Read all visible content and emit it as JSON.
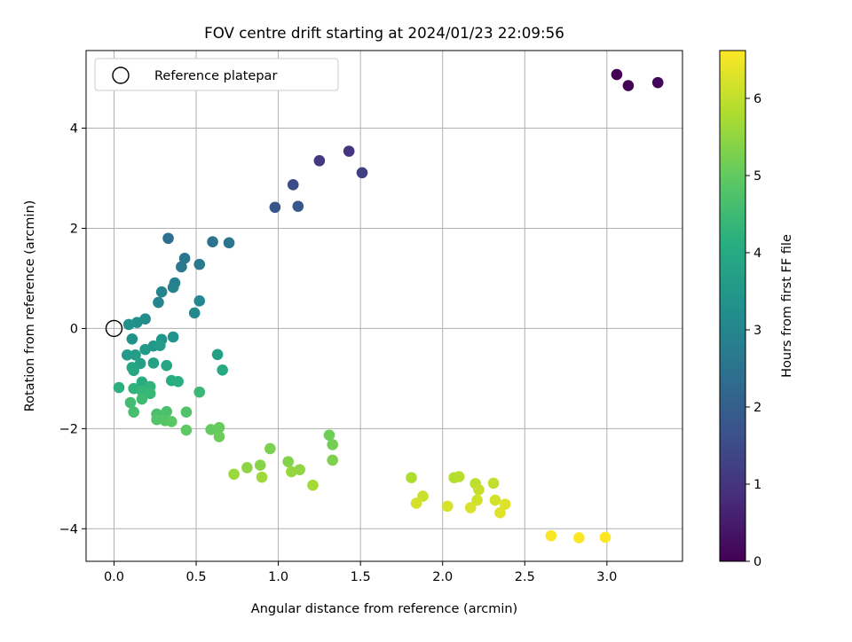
{
  "chart_data": {
    "type": "scatter",
    "title": "FOV centre drift starting at 2024/01/23 22:09:56",
    "xlabel": "Angular distance from reference (arcmin)",
    "ylabel": "Rotation from reference (arcmin)",
    "xlim": [
      -0.17,
      3.46
    ],
    "ylim": [
      -4.65,
      5.55
    ],
    "xticks": [
      0.0,
      0.5,
      1.0,
      1.5,
      2.0,
      2.5,
      3.0
    ],
    "xtick_labels": [
      "0.0",
      "0.5",
      "1.0",
      "1.5",
      "2.0",
      "2.5",
      "3.0"
    ],
    "yticks": [
      -4,
      -2,
      0,
      2,
      4
    ],
    "ytick_labels": [
      "−4",
      "−2",
      "0",
      "2",
      "4"
    ],
    "grid": true,
    "legend": {
      "placement": "top-left",
      "entries": [
        "Reference platepar"
      ]
    },
    "reference_point": {
      "x": 0.0,
      "y": 0.0
    },
    "colorbar": {
      "label": "Hours from first FF file",
      "colormap": "viridis",
      "range": [
        0,
        6.62
      ],
      "ticks": [
        0,
        1,
        2,
        3,
        4,
        5,
        6
      ],
      "tick_labels": [
        "0",
        "1",
        "2",
        "3",
        "4",
        "5",
        "6"
      ]
    },
    "points": [
      {
        "x": 3.06,
        "y": 5.07,
        "c": 0.0
      },
      {
        "x": 3.13,
        "y": 4.85,
        "c": 0.05
      },
      {
        "x": 3.31,
        "y": 4.91,
        "c": 0.1
      },
      {
        "x": 1.43,
        "y": 3.54,
        "c": 1.0
      },
      {
        "x": 1.25,
        "y": 3.35,
        "c": 1.1
      },
      {
        "x": 1.51,
        "y": 3.11,
        "c": 1.25
      },
      {
        "x": 1.09,
        "y": 2.87,
        "c": 1.5
      },
      {
        "x": 0.98,
        "y": 2.42,
        "c": 1.75
      },
      {
        "x": 1.12,
        "y": 2.44,
        "c": 1.8
      },
      {
        "x": 0.33,
        "y": 1.8,
        "c": 2.4
      },
      {
        "x": 0.6,
        "y": 1.73,
        "c": 2.5
      },
      {
        "x": 0.7,
        "y": 1.71,
        "c": 2.55
      },
      {
        "x": 0.43,
        "y": 1.4,
        "c": 2.6
      },
      {
        "x": 0.41,
        "y": 1.23,
        "c": 2.65
      },
      {
        "x": 0.52,
        "y": 1.28,
        "c": 2.7
      },
      {
        "x": 0.37,
        "y": 0.91,
        "c": 2.85
      },
      {
        "x": 0.36,
        "y": 0.82,
        "c": 2.9
      },
      {
        "x": 0.29,
        "y": 0.73,
        "c": 2.95
      },
      {
        "x": 0.27,
        "y": 0.52,
        "c": 3.0
      },
      {
        "x": 0.52,
        "y": 0.55,
        "c": 3.05
      },
      {
        "x": 0.49,
        "y": 0.31,
        "c": 3.1
      },
      {
        "x": 0.19,
        "y": 0.19,
        "c": 3.2
      },
      {
        "x": 0.14,
        "y": 0.12,
        "c": 3.25
      },
      {
        "x": 0.09,
        "y": 0.08,
        "c": 3.3
      },
      {
        "x": 0.11,
        "y": -0.21,
        "c": 3.35
      },
      {
        "x": 0.36,
        "y": -0.17,
        "c": 3.4
      },
      {
        "x": 0.29,
        "y": -0.22,
        "c": 3.45
      },
      {
        "x": 0.24,
        "y": -0.35,
        "c": 3.5
      },
      {
        "x": 0.19,
        "y": -0.42,
        "c": 3.55
      },
      {
        "x": 0.28,
        "y": -0.34,
        "c": 3.6
      },
      {
        "x": 0.08,
        "y": -0.53,
        "c": 3.6
      },
      {
        "x": 0.13,
        "y": -0.53,
        "c": 3.65
      },
      {
        "x": 0.63,
        "y": -0.52,
        "c": 3.7
      },
      {
        "x": 0.16,
        "y": -0.7,
        "c": 3.75
      },
      {
        "x": 0.24,
        "y": -0.69,
        "c": 3.8
      },
      {
        "x": 0.32,
        "y": -0.74,
        "c": 3.85
      },
      {
        "x": 0.11,
        "y": -0.78,
        "c": 3.9
      },
      {
        "x": 0.12,
        "y": -0.84,
        "c": 3.95
      },
      {
        "x": 0.66,
        "y": -0.83,
        "c": 4.0
      },
      {
        "x": 0.17,
        "y": -1.07,
        "c": 4.05
      },
      {
        "x": 0.35,
        "y": -1.04,
        "c": 4.1
      },
      {
        "x": 0.39,
        "y": -1.06,
        "c": 4.15
      },
      {
        "x": 0.03,
        "y": -1.18,
        "c": 4.2
      },
      {
        "x": 0.12,
        "y": -1.2,
        "c": 4.25
      },
      {
        "x": 0.22,
        "y": -1.16,
        "c": 4.3
      },
      {
        "x": 0.17,
        "y": -1.25,
        "c": 4.35
      },
      {
        "x": 0.22,
        "y": -1.3,
        "c": 4.4
      },
      {
        "x": 0.52,
        "y": -1.27,
        "c": 4.45
      },
      {
        "x": 0.17,
        "y": -1.41,
        "c": 4.5
      },
      {
        "x": 0.1,
        "y": -1.48,
        "c": 4.55
      },
      {
        "x": 0.12,
        "y": -1.67,
        "c": 4.6
      },
      {
        "x": 0.26,
        "y": -1.71,
        "c": 4.65
      },
      {
        "x": 0.32,
        "y": -1.66,
        "c": 4.7
      },
      {
        "x": 0.44,
        "y": -1.67,
        "c": 4.75
      },
      {
        "x": 0.26,
        "y": -1.82,
        "c": 4.8
      },
      {
        "x": 0.31,
        "y": -1.84,
        "c": 4.85
      },
      {
        "x": 0.35,
        "y": -1.86,
        "c": 4.9
      },
      {
        "x": 0.44,
        "y": -2.03,
        "c": 4.95
      },
      {
        "x": 0.59,
        "y": -2.02,
        "c": 5.0
      },
      {
        "x": 0.64,
        "y": -1.98,
        "c": 5.05
      },
      {
        "x": 0.64,
        "y": -2.16,
        "c": 5.1
      },
      {
        "x": 1.31,
        "y": -2.13,
        "c": 5.15
      },
      {
        "x": 1.33,
        "y": -2.32,
        "c": 5.2
      },
      {
        "x": 0.95,
        "y": -2.4,
        "c": 5.25
      },
      {
        "x": 1.33,
        "y": -2.63,
        "c": 5.3
      },
      {
        "x": 1.06,
        "y": -2.66,
        "c": 5.35
      },
      {
        "x": 0.89,
        "y": -2.73,
        "c": 5.4
      },
      {
        "x": 0.81,
        "y": -2.78,
        "c": 5.45
      },
      {
        "x": 1.13,
        "y": -2.82,
        "c": 5.5
      },
      {
        "x": 1.08,
        "y": -2.86,
        "c": 5.55
      },
      {
        "x": 0.73,
        "y": -2.91,
        "c": 5.6
      },
      {
        "x": 0.9,
        "y": -2.97,
        "c": 5.65
      },
      {
        "x": 1.21,
        "y": -3.13,
        "c": 5.7
      },
      {
        "x": 1.81,
        "y": -2.98,
        "c": 5.8
      },
      {
        "x": 2.07,
        "y": -2.98,
        "c": 5.85
      },
      {
        "x": 2.1,
        "y": -2.96,
        "c": 5.9
      },
      {
        "x": 2.2,
        "y": -3.1,
        "c": 5.95
      },
      {
        "x": 2.31,
        "y": -3.09,
        "c": 6.0
      },
      {
        "x": 2.22,
        "y": -3.22,
        "c": 6.05
      },
      {
        "x": 1.88,
        "y": -3.35,
        "c": 6.1
      },
      {
        "x": 2.21,
        "y": -3.43,
        "c": 6.15
      },
      {
        "x": 2.32,
        "y": -3.43,
        "c": 6.2
      },
      {
        "x": 1.84,
        "y": -3.49,
        "c": 6.2
      },
      {
        "x": 2.03,
        "y": -3.55,
        "c": 6.25
      },
      {
        "x": 2.17,
        "y": -3.58,
        "c": 6.25
      },
      {
        "x": 2.38,
        "y": -3.51,
        "c": 6.3
      },
      {
        "x": 2.35,
        "y": -3.68,
        "c": 6.3
      },
      {
        "x": 2.66,
        "y": -4.14,
        "c": 6.55
      },
      {
        "x": 2.83,
        "y": -4.18,
        "c": 6.6
      },
      {
        "x": 2.99,
        "y": -4.17,
        "c": 6.62
      }
    ]
  }
}
